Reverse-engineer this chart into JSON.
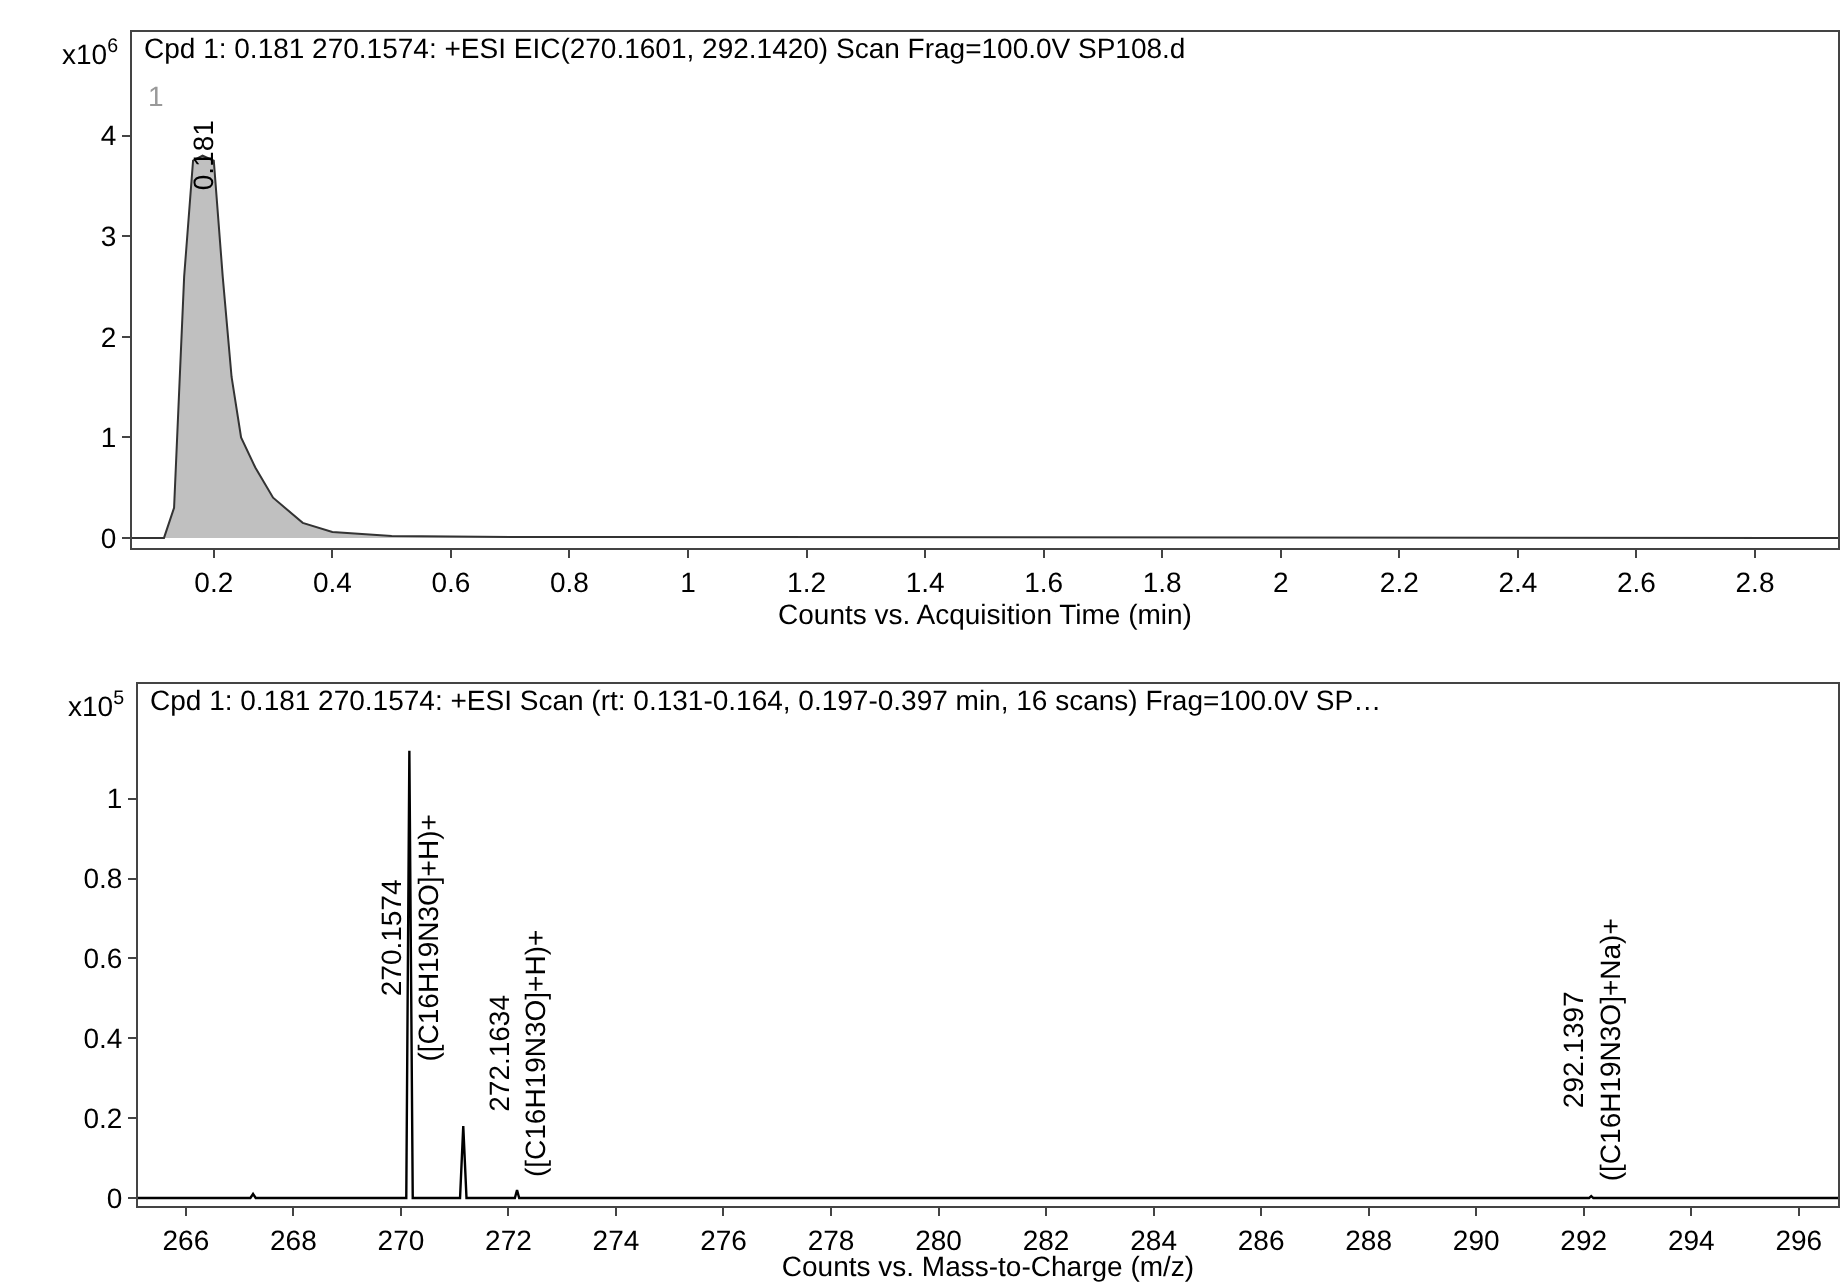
{
  "chart_data": [
    {
      "type": "area",
      "title": "Cpd 1: 0.181 270.1574: +ESI EIC(270.1601, 292.1420) Scan Frag=100.0V SP108.d",
      "xlabel": "Counts vs. Acquisition Time (min)",
      "ylabel": "x10$^{6}$",
      "x": [
        0.062,
        0.116,
        0.133,
        0.15,
        0.165,
        0.181,
        0.2,
        0.215,
        0.23,
        0.246,
        0.27,
        0.3,
        0.35,
        0.4,
        0.5,
        0.7,
        1.0,
        2.94
      ],
      "values": [
        0,
        0,
        0.3,
        2.6,
        3.75,
        3.8,
        3.75,
        2.6,
        1.6,
        1.0,
        0.7,
        0.4,
        0.15,
        0.06,
        0.02,
        0.01,
        0.01,
        0
      ],
      "color": "#c0c0c0",
      "xlim": [
        0.062,
        2.94
      ],
      "ylim": [
        -0.1,
        5.03
      ],
      "xticks": [
        0.2,
        0.4,
        0.6,
        0.8,
        1,
        1.2,
        1.4,
        1.6,
        1.8,
        2,
        2.2,
        2.4,
        2.6,
        2.8
      ],
      "yticks": [
        0,
        1,
        2,
        3,
        4
      ],
      "annotations": [
        "1",
        {
          "text": "0.181",
          "x": 0.181,
          "y": 3.8
        }
      ]
    },
    {
      "type": "line",
      "title": "Cpd 1: 0.181 270.1574: +ESI Scan (rt: 0.131-0.164, 0.197-0.397 min, 16 scans) Frag=100.0V SP…",
      "xlabel": "Counts vs. Mass-to-Charge (m/z)",
      "ylabel": "x10$^{5}$",
      "x": [
        265.11,
        267.2,
        267.25,
        267.3,
        270.1,
        270.1574,
        270.22,
        271.1,
        271.16,
        271.22,
        272.12,
        272.16,
        272.2,
        292.1,
        292.14,
        292.18,
        296.73
      ],
      "values": [
        0,
        0,
        0.01,
        0,
        0,
        1.12,
        0,
        0,
        0.18,
        0,
        0,
        0.02,
        0,
        0,
        0.005,
        0,
        0
      ],
      "color": "#000000",
      "xlim": [
        265.11,
        296.73
      ],
      "ylim": [
        -0.02,
        1.287
      ],
      "xticks": [
        266,
        268,
        270,
        272,
        274,
        276,
        278,
        280,
        282,
        284,
        286,
        288,
        290,
        292,
        294,
        296
      ],
      "yticks": [
        0,
        0.2,
        0.4,
        0.6,
        0.8,
        1
      ],
      "annotations": [
        {
          "text": "270.1574\n([C16H19N3O]+H)+",
          "x": 270.1574,
          "y": 0.33
        },
        {
          "text": "272.1634\n([C16H19N3O]+H)+",
          "x": 272.16,
          "y": 0.04
        },
        {
          "text": "292.1397\n([C16H19N3O]+Na)+",
          "x": 292.14,
          "y": 0.03
        }
      ]
    }
  ]
}
